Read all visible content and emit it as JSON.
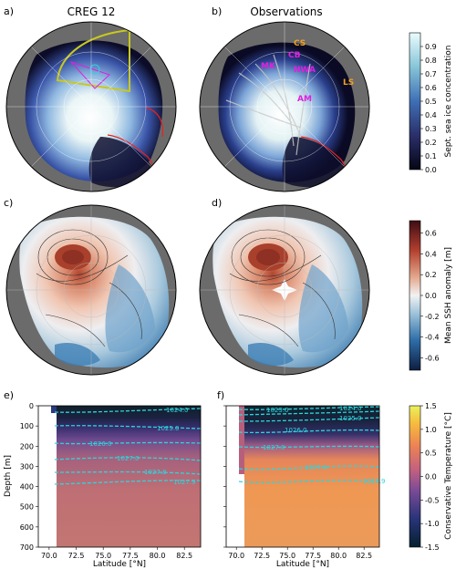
{
  "panels": {
    "a": {
      "letter": "a)",
      "title": "CREG 12"
    },
    "b": {
      "letter": "b)",
      "title": "Observations"
    },
    "c": {
      "letter": "c)"
    },
    "d": {
      "letter": "d)"
    },
    "e": {
      "letter": "e)"
    },
    "f": {
      "letter": "f)"
    }
  },
  "region_labels": {
    "cs": "CS",
    "cb": "CB",
    "mk": "MK",
    "nwa": "NWA",
    "am": "AM",
    "ls": "LS"
  },
  "colors": {
    "land": "#6b6b6b",
    "ice_edge": "#e8221e",
    "box_outline": "#c8c81e",
    "region_magenta": "#e020e0",
    "region_orange": "#f0a020",
    "isopycnal": "#2ed4de"
  },
  "chart_data": [
    {
      "type": "heatmap",
      "panel": "a",
      "title": "CREG 12",
      "colorbar": {
        "label": "Sept. sea ice concentration",
        "ticks": [
          "0.0",
          "0.1",
          "0.2",
          "0.3",
          "0.4",
          "0.5",
          "0.6",
          "0.7",
          "0.8",
          "0.9"
        ],
        "range": [
          0,
          1
        ],
        "colormap": "ice"
      }
    },
    {
      "type": "heatmap",
      "panel": "b",
      "title": "Observations",
      "colorbar": "shared with a"
    },
    {
      "type": "heatmap",
      "panel": "c",
      "colorbar": {
        "label": "Mean SSH anomaly [m]",
        "ticks": [
          "-0.6",
          "-0.4",
          "-0.2",
          "0.0",
          "0.2",
          "0.4",
          "0.6"
        ],
        "range": [
          -0.72,
          0.72
        ],
        "colormap": "diverging red-blue"
      }
    },
    {
      "type": "heatmap",
      "panel": "d",
      "colorbar": "shared with c"
    },
    {
      "type": "heatmap",
      "panel": "e",
      "xlabel": "Latitude [$^\\circ$N]",
      "ylabel": "Depth [m]",
      "xticks": [
        "70.0",
        "72.5",
        "75.0",
        "77.5",
        "80.0",
        "82.5"
      ],
      "yticks": [
        "0",
        "100",
        "200",
        "300",
        "400",
        "500",
        "600",
        "700"
      ],
      "xlim": [
        69,
        84
      ],
      "ylim": [
        700,
        0
      ],
      "isopycnal_labels": [
        "1024.0",
        "1025.0",
        "1026.0",
        "1027.0",
        "1027.8",
        "1027.9"
      ],
      "colorbar": {
        "label": "Conservative Temperature [$^\\circ$C]",
        "ticks": [
          "-1.5",
          "-1.0",
          "-0.5",
          "0.0",
          "0.5",
          "1.0",
          "1.5"
        ],
        "range": [
          -1.5,
          1.5
        ],
        "colormap": "thermal"
      }
    },
    {
      "type": "heatmap",
      "panel": "f",
      "xlabel": "Latitude [$^\\circ$N]",
      "xticks": [
        "70.0",
        "72.5",
        "75.0",
        "77.5",
        "80.0",
        "82.5"
      ],
      "xlim": [
        69,
        84
      ],
      "ylim": [
        700,
        0
      ],
      "isopycnal_labels": [
        "1023.0",
        "1024.0",
        "1025.0",
        "1026.0",
        "1027.0",
        "1027.8",
        "1027.9"
      ]
    }
  ]
}
